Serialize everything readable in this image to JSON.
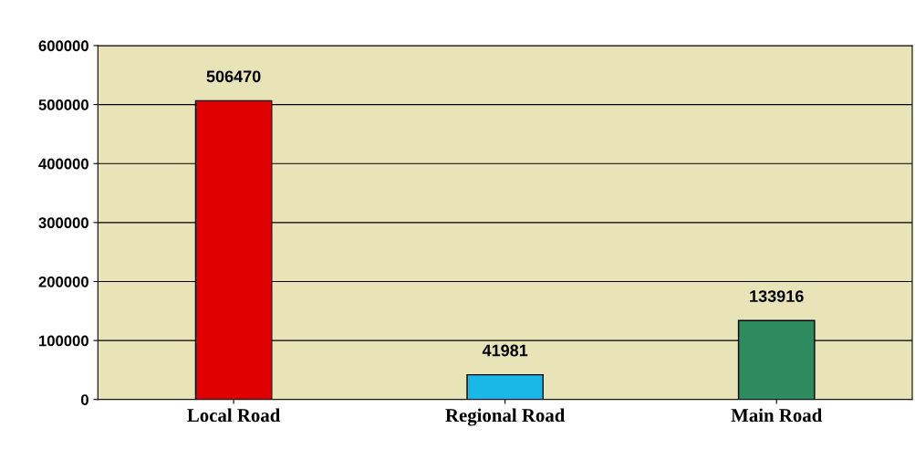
{
  "chart_data": {
    "type": "bar",
    "categories": [
      "Local Road",
      "Regional Road",
      "Main Road"
    ],
    "values": [
      506470,
      41981,
      133916
    ],
    "colors": [
      "#e00000",
      "#1ab8e8",
      "#2e8b60"
    ],
    "ylim": [
      0,
      600000
    ],
    "yticks": [
      0,
      100000,
      200000,
      300000,
      400000,
      500000,
      600000
    ],
    "grid": "y",
    "data_labels": true
  }
}
